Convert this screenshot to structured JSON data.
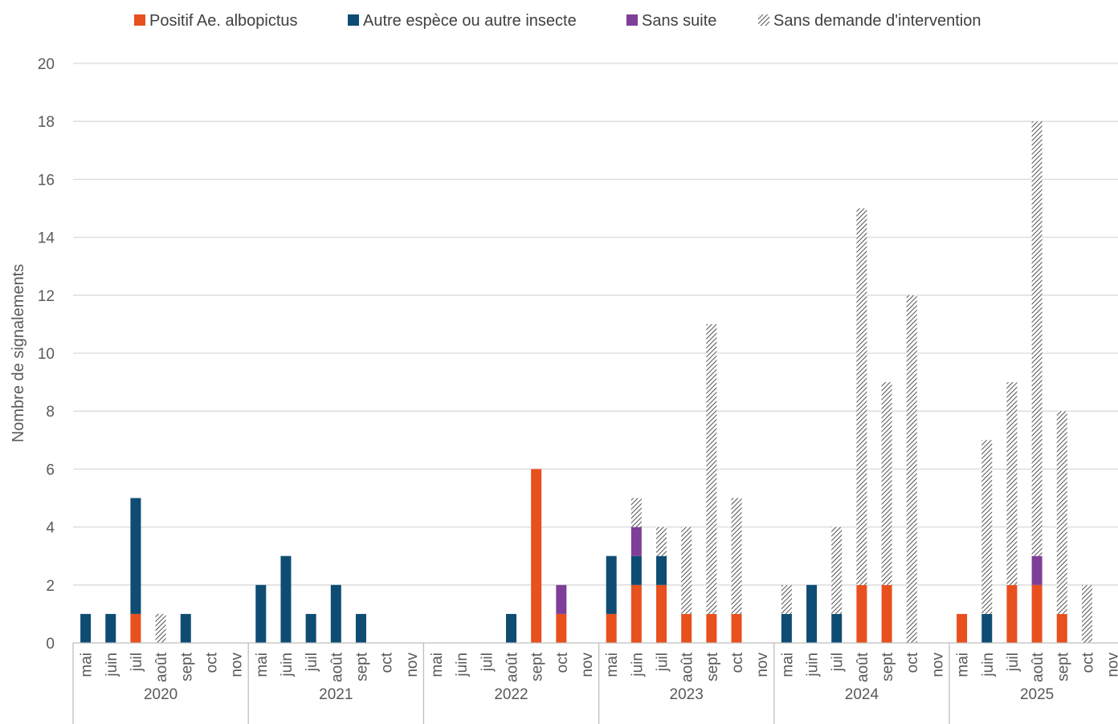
{
  "chart_data": {
    "type": "bar",
    "stacked": true,
    "ylabel": "Nombre de signalements",
    "ylim": [
      0,
      20
    ],
    "yticks": [
      0,
      2,
      4,
      6,
      8,
      10,
      12,
      14,
      16,
      18,
      20
    ],
    "grid": true,
    "legend_position": "top",
    "months": [
      "mai",
      "juin",
      "juil",
      "août",
      "sept",
      "oct",
      "nov"
    ],
    "years": [
      "2020",
      "2021",
      "2022",
      "2023",
      "2024",
      "2025"
    ],
    "series": [
      {
        "name": "Positif Ae. albopictus",
        "color": "#E8501E",
        "pattern": "solid",
        "values": [
          [
            0,
            0,
            1,
            0,
            0,
            0,
            0
          ],
          [
            0,
            0,
            0,
            0,
            0,
            0,
            0
          ],
          [
            0,
            0,
            0,
            0,
            6,
            1,
            0
          ],
          [
            1,
            2,
            2,
            1,
            1,
            1,
            0
          ],
          [
            0,
            0,
            0,
            2,
            2,
            0,
            0
          ],
          [
            1,
            0,
            2,
            2,
            1,
            0,
            0
          ]
        ]
      },
      {
        "name": "Autre espèce ou autre insecte",
        "color": "#0E4C73",
        "pattern": "solid",
        "values": [
          [
            1,
            1,
            4,
            0,
            1,
            0,
            0
          ],
          [
            2,
            3,
            1,
            2,
            1,
            0,
            0
          ],
          [
            0,
            0,
            0,
            1,
            0,
            0,
            0
          ],
          [
            2,
            1,
            1,
            0,
            0,
            0,
            0
          ],
          [
            1,
            2,
            1,
            0,
            0,
            0,
            0
          ],
          [
            0,
            1,
            0,
            0,
            0,
            0,
            0
          ]
        ]
      },
      {
        "name": "Sans suite",
        "color": "#7F3F98",
        "pattern": "solid",
        "values": [
          [
            0,
            0,
            0,
            0,
            0,
            0,
            0
          ],
          [
            0,
            0,
            0,
            0,
            0,
            0,
            0
          ],
          [
            0,
            0,
            0,
            0,
            0,
            1,
            0
          ],
          [
            0,
            1,
            0,
            0,
            0,
            0,
            0
          ],
          [
            0,
            0,
            0,
            0,
            0,
            0,
            0
          ],
          [
            0,
            0,
            0,
            1,
            0,
            0,
            0
          ]
        ]
      },
      {
        "name": "Sans demande d'intervention",
        "color": "#262626",
        "pattern": "hatch",
        "values": [
          [
            0,
            0,
            0,
            1,
            0,
            0,
            0
          ],
          [
            0,
            0,
            0,
            0,
            0,
            0,
            0
          ],
          [
            0,
            0,
            0,
            0,
            0,
            0,
            0
          ],
          [
            0,
            1,
            1,
            3,
            10,
            4,
            0
          ],
          [
            1,
            0,
            3,
            13,
            7,
            12,
            0
          ],
          [
            0,
            6,
            7,
            15,
            7,
            2,
            0
          ]
        ]
      }
    ]
  }
}
